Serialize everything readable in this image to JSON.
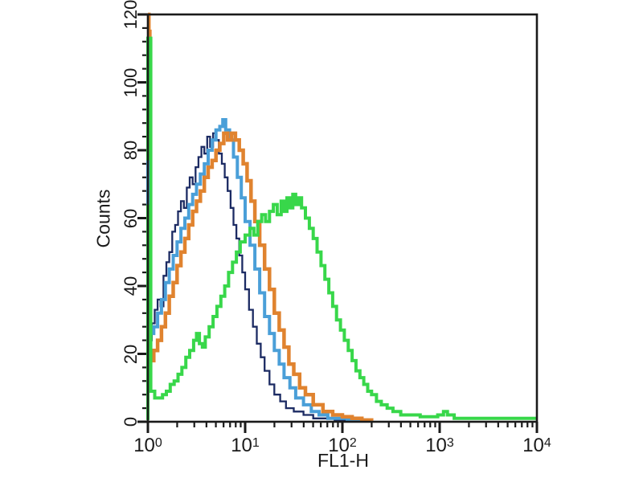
{
  "chart_data": {
    "type": "line",
    "subtype": "flow-cytometry-histogram-overlay",
    "title": "",
    "xlabel": "FL1-H",
    "ylabel": "Counts",
    "x_scale": "log10",
    "x_range_log": [
      0,
      4
    ],
    "y_range": [
      0,
      120
    ],
    "grid": false,
    "legend": "none",
    "frame_color": "#1a1a1a",
    "background_color": "#ffffff",
    "y_ticks": {
      "major_values": [
        0,
        20,
        40,
        60,
        80,
        100,
        120
      ],
      "major_labels": [
        "0",
        "20",
        "40",
        "60",
        "80",
        "100",
        "120"
      ],
      "minor_step": 4
    },
    "x_ticks": {
      "major": [
        {
          "base": "10",
          "exp": "0",
          "log": 0
        },
        {
          "base": "10",
          "exp": "1",
          "log": 1
        },
        {
          "base": "10",
          "exp": "2",
          "log": 2
        },
        {
          "base": "10",
          "exp": "3",
          "log": 3
        },
        {
          "base": "10",
          "exp": "4",
          "log": 4
        }
      ],
      "minor_mantissas": [
        2,
        3,
        4,
        5,
        6,
        7,
        8,
        9
      ]
    },
    "series": [
      {
        "name": "dark-blue",
        "color": "#1c2b63",
        "stroke_width": 2.3,
        "points_logx_counts": [
          [
            0.0,
            24
          ],
          [
            0.04,
            29
          ],
          [
            0.07,
            33
          ],
          [
            0.1,
            36
          ],
          [
            0.13,
            34
          ],
          [
            0.16,
            43
          ],
          [
            0.19,
            47
          ],
          [
            0.22,
            50
          ],
          [
            0.25,
            56
          ],
          [
            0.28,
            58
          ],
          [
            0.31,
            62
          ],
          [
            0.34,
            65
          ],
          [
            0.37,
            63
          ],
          [
            0.4,
            69
          ],
          [
            0.43,
            72
          ],
          [
            0.46,
            70
          ],
          [
            0.49,
            75
          ],
          [
            0.52,
            78
          ],
          [
            0.55,
            81
          ],
          [
            0.58,
            79
          ],
          [
            0.61,
            84
          ],
          [
            0.64,
            81
          ],
          [
            0.67,
            85
          ],
          [
            0.7,
            83
          ],
          [
            0.73,
            79
          ],
          [
            0.76,
            76
          ],
          [
            0.79,
            72
          ],
          [
            0.82,
            68
          ],
          [
            0.85,
            63
          ],
          [
            0.88,
            58
          ],
          [
            0.91,
            54
          ],
          [
            0.94,
            49
          ],
          [
            0.97,
            44
          ],
          [
            1.0,
            39
          ],
          [
            1.04,
            33
          ],
          [
            1.08,
            28
          ],
          [
            1.12,
            23
          ],
          [
            1.16,
            19
          ],
          [
            1.2,
            15
          ],
          [
            1.25,
            11
          ],
          [
            1.3,
            8
          ],
          [
            1.36,
            6
          ],
          [
            1.42,
            4
          ],
          [
            1.5,
            3
          ],
          [
            1.6,
            2
          ],
          [
            1.7,
            1
          ],
          [
            1.8,
            1
          ],
          [
            1.92,
            0.5
          ],
          [
            2.05,
            0.5
          ],
          [
            2.15,
            0.3
          ]
        ]
      },
      {
        "name": "light-blue",
        "color": "#4a9fd8",
        "stroke_width": 4,
        "points_logx_counts": [
          [
            0.02,
            26
          ],
          [
            0.06,
            28
          ],
          [
            0.1,
            32
          ],
          [
            0.14,
            36
          ],
          [
            0.18,
            41
          ],
          [
            0.22,
            45
          ],
          [
            0.26,
            49
          ],
          [
            0.3,
            53
          ],
          [
            0.34,
            57
          ],
          [
            0.38,
            60
          ],
          [
            0.42,
            64
          ],
          [
            0.46,
            67
          ],
          [
            0.5,
            70
          ],
          [
            0.54,
            73
          ],
          [
            0.58,
            76
          ],
          [
            0.62,
            80
          ],
          [
            0.66,
            83
          ],
          [
            0.7,
            86
          ],
          [
            0.74,
            87
          ],
          [
            0.77,
            89
          ],
          [
            0.8,
            86
          ],
          [
            0.84,
            83
          ],
          [
            0.88,
            78
          ],
          [
            0.92,
            72
          ],
          [
            0.96,
            66
          ],
          [
            1.0,
            59
          ],
          [
            1.05,
            52
          ],
          [
            1.1,
            45
          ],
          [
            1.15,
            38
          ],
          [
            1.2,
            31
          ],
          [
            1.25,
            26
          ],
          [
            1.3,
            21
          ],
          [
            1.35,
            17
          ],
          [
            1.4,
            13
          ],
          [
            1.46,
            10
          ],
          [
            1.52,
            7
          ],
          [
            1.6,
            5
          ],
          [
            1.68,
            3
          ],
          [
            1.76,
            2
          ],
          [
            1.85,
            1
          ],
          [
            1.95,
            1
          ],
          [
            2.05,
            0.5
          ],
          [
            2.15,
            0.5
          ],
          [
            2.25,
            0.3
          ]
        ]
      },
      {
        "name": "orange",
        "color": "#e0832f",
        "stroke_width": 4.5,
        "points_logx_counts": [
          [
            0.0,
            120
          ],
          [
            0.01,
            115
          ],
          [
            0.02,
            18
          ],
          [
            0.06,
            21
          ],
          [
            0.1,
            24
          ],
          [
            0.14,
            28
          ],
          [
            0.18,
            32
          ],
          [
            0.22,
            37
          ],
          [
            0.26,
            41
          ],
          [
            0.3,
            46
          ],
          [
            0.34,
            50
          ],
          [
            0.38,
            54
          ],
          [
            0.42,
            58
          ],
          [
            0.46,
            62
          ],
          [
            0.5,
            65
          ],
          [
            0.54,
            68
          ],
          [
            0.58,
            72
          ],
          [
            0.62,
            75
          ],
          [
            0.66,
            77
          ],
          [
            0.7,
            80
          ],
          [
            0.74,
            82
          ],
          [
            0.78,
            85
          ],
          [
            0.82,
            83
          ],
          [
            0.86,
            85
          ],
          [
            0.9,
            83
          ],
          [
            0.94,
            80
          ],
          [
            0.98,
            76
          ],
          [
            1.02,
            71
          ],
          [
            1.06,
            65
          ],
          [
            1.1,
            59
          ],
          [
            1.15,
            52
          ],
          [
            1.2,
            45
          ],
          [
            1.25,
            39
          ],
          [
            1.3,
            32
          ],
          [
            1.35,
            27
          ],
          [
            1.4,
            22
          ],
          [
            1.45,
            17
          ],
          [
            1.5,
            14
          ],
          [
            1.56,
            10
          ],
          [
            1.62,
            8
          ],
          [
            1.7,
            5
          ],
          [
            1.8,
            3
          ],
          [
            1.9,
            2
          ],
          [
            2.0,
            1.5
          ],
          [
            2.1,
            1
          ],
          [
            2.2,
            0.5
          ],
          [
            2.3,
            0.3
          ]
        ]
      },
      {
        "name": "green",
        "color": "#38d74a",
        "stroke_width": 4,
        "points_logx_counts": [
          [
            0.0,
            0.5
          ],
          [
            0.0,
            113
          ],
          [
            0.02,
            113
          ],
          [
            0.03,
            9
          ],
          [
            0.07,
            7
          ],
          [
            0.11,
            7
          ],
          [
            0.15,
            8
          ],
          [
            0.19,
            9
          ],
          [
            0.23,
            11
          ],
          [
            0.27,
            12
          ],
          [
            0.31,
            14
          ],
          [
            0.35,
            16
          ],
          [
            0.39,
            19
          ],
          [
            0.43,
            21
          ],
          [
            0.47,
            24
          ],
          [
            0.5,
            26
          ],
          [
            0.53,
            23
          ],
          [
            0.56,
            22
          ],
          [
            0.59,
            25
          ],
          [
            0.63,
            28
          ],
          [
            0.67,
            31
          ],
          [
            0.71,
            34
          ],
          [
            0.75,
            37
          ],
          [
            0.79,
            40
          ],
          [
            0.83,
            44
          ],
          [
            0.87,
            47
          ],
          [
            0.91,
            50
          ],
          [
            0.95,
            53
          ],
          [
            1.0,
            55
          ],
          [
            1.05,
            57
          ],
          [
            1.09,
            55
          ],
          [
            1.13,
            59
          ],
          [
            1.17,
            61
          ],
          [
            1.21,
            59
          ],
          [
            1.25,
            62
          ],
          [
            1.29,
            64
          ],
          [
            1.33,
            61
          ],
          [
            1.37,
            65
          ],
          [
            1.4,
            62
          ],
          [
            1.43,
            66
          ],
          [
            1.46,
            63
          ],
          [
            1.49,
            67
          ],
          [
            1.52,
            64
          ],
          [
            1.55,
            66
          ],
          [
            1.58,
            63
          ],
          [
            1.62,
            60
          ],
          [
            1.66,
            57
          ],
          [
            1.7,
            54
          ],
          [
            1.74,
            50
          ],
          [
            1.78,
            46
          ],
          [
            1.82,
            42
          ],
          [
            1.86,
            38
          ],
          [
            1.9,
            34
          ],
          [
            1.94,
            30
          ],
          [
            1.98,
            27
          ],
          [
            2.02,
            24
          ],
          [
            2.06,
            21
          ],
          [
            2.1,
            18
          ],
          [
            2.14,
            15
          ],
          [
            2.18,
            13
          ],
          [
            2.22,
            11
          ],
          [
            2.26,
            9
          ],
          [
            2.3,
            8
          ],
          [
            2.35,
            6
          ],
          [
            2.4,
            5
          ],
          [
            2.46,
            4
          ],
          [
            2.52,
            3
          ],
          [
            2.6,
            2
          ],
          [
            2.7,
            2
          ],
          [
            2.8,
            1.5
          ],
          [
            2.9,
            1.5
          ],
          [
            2.98,
            2
          ],
          [
            3.04,
            3
          ],
          [
            3.08,
            2
          ],
          [
            3.15,
            1
          ],
          [
            3.3,
            1
          ],
          [
            3.5,
            1
          ],
          [
            3.7,
            1
          ],
          [
            3.9,
            1
          ],
          [
            4.0,
            1
          ]
        ]
      },
      {
        "name": "light-blue-edge-spike",
        "color": "#4a9fd8",
        "stroke_width": 4,
        "no_step": true,
        "points_logx_counts": [
          [
            0.0,
            64
          ],
          [
            0.0,
            77
          ]
        ]
      }
    ]
  }
}
